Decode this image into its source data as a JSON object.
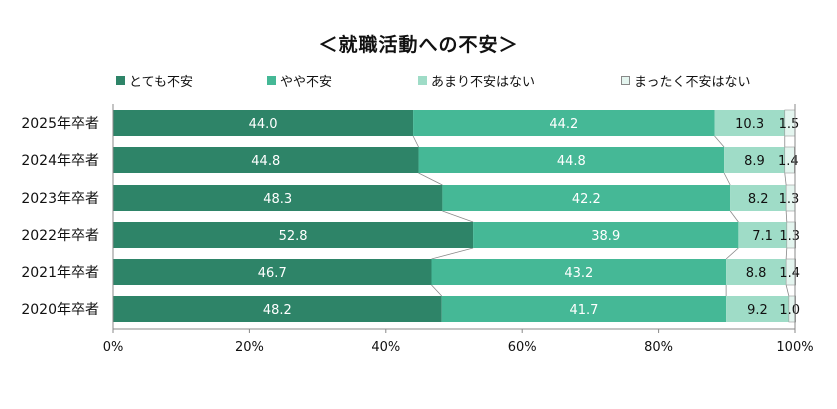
{
  "chart_data": {
    "type": "bar",
    "orientation": "horizontal",
    "stacked": "percent",
    "title": "＜就職活動への不安＞",
    "categories": [
      "2025年卒者",
      "2024年卒者",
      "2023年卒者",
      "2022年卒者",
      "2021年卒者",
      "2020年卒者"
    ],
    "series": [
      {
        "name": "とても不安",
        "color": "#2e8468",
        "values": [
          44.0,
          44.8,
          48.3,
          52.8,
          46.7,
          48.2
        ]
      },
      {
        "name": "やや不安",
        "color": "#45b896",
        "values": [
          44.2,
          44.8,
          42.2,
          38.9,
          43.2,
          41.7
        ]
      },
      {
        "name": "あまり不安はない",
        "color": "#9fdcc7",
        "values": [
          10.3,
          8.9,
          8.2,
          7.1,
          8.8,
          9.2
        ]
      },
      {
        "name": "まったく不安はない",
        "color": "#e4f5ef",
        "values": [
          1.5,
          1.4,
          1.3,
          1.3,
          1.4,
          1.0
        ]
      }
    ],
    "value_labels": [
      [
        "44.0",
        "44.2",
        "10.3",
        "1.5"
      ],
      [
        "44.8",
        "44.8",
        "8.9",
        "1.4"
      ],
      [
        "48.3",
        "42.2",
        "8.2",
        "1.3"
      ],
      [
        "52.8",
        "38.9",
        "7.1",
        "1.3"
      ],
      [
        "46.7",
        "43.2",
        "8.8",
        "1.4"
      ],
      [
        "48.2",
        "41.7",
        "9.2",
        "1.0"
      ]
    ],
    "xlim": [
      0,
      100
    ],
    "xticks": [
      "0%",
      "20%",
      "40%",
      "60%",
      "80%",
      "100%"
    ],
    "grid": false,
    "legend_position": "top"
  }
}
